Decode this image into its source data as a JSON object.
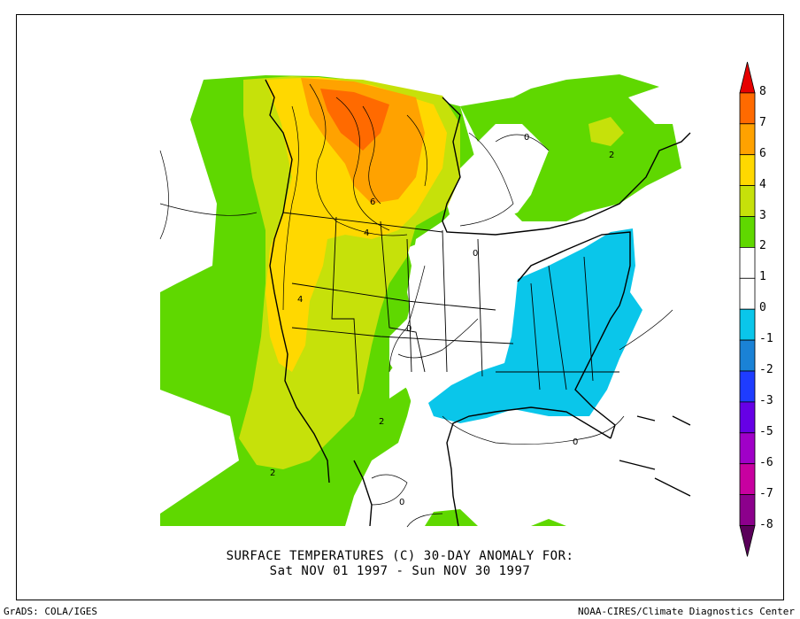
{
  "title": {
    "line1": "SURFACE TEMPERATURES (C)   30-DAY ANOMALY FOR:",
    "line2": "Sat NOV 01 1997 - Sun NOV 30 1997"
  },
  "footer": {
    "left": "GrADS: COLA/IGES",
    "right": "NOAA-CIRES/Climate Diagnostics Center"
  },
  "colorbar": {
    "labels": [
      "8",
      "7",
      "6",
      "4",
      "3",
      "2",
      "1",
      "0",
      "-1",
      "-2",
      "-3",
      "-5",
      "-6",
      "-7",
      "-8"
    ],
    "colors": [
      "#e60000",
      "#ff6a00",
      "#ffa200",
      "#ffd800",
      "#c6e10a",
      "#5fd800",
      "#ffffff",
      "#ffffff",
      "#0ac6ea",
      "#1a82d6",
      "#1e3cff",
      "#6600e6",
      "#a000c8",
      "#c800a0",
      "#8c008c",
      "#5a005a"
    ]
  },
  "contour_labels": [
    "6",
    "4",
    "4",
    "2",
    "2",
    "2",
    "0",
    "0",
    "0",
    "0",
    "0"
  ],
  "colors": {
    "warm_green": "#5fd800",
    "yellow_green": "#c6e10a",
    "yellow": "#ffd800",
    "orange": "#ffa200",
    "dark_orange": "#ff6a00",
    "cool_blue": "#0ac6ea"
  }
}
